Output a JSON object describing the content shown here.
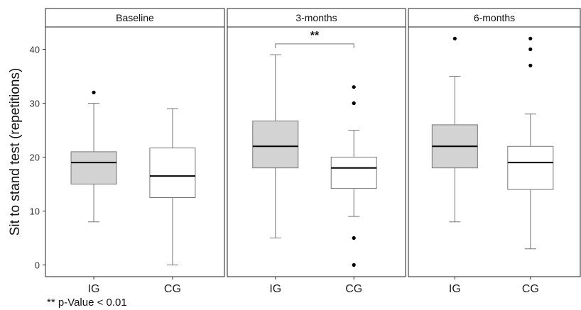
{
  "chart_data": {
    "type": "box",
    "ylabel": "Sit  to stand test (repetitions)",
    "xlabel": "",
    "ylim": [
      -2,
      44
    ],
    "yticks": [
      0,
      10,
      20,
      30,
      40
    ],
    "grid": false,
    "categories": [
      "IG",
      "CG"
    ],
    "fills": {
      "IG": "#d3d3d3",
      "CG": "#ffffff"
    },
    "panels": [
      {
        "title": "Baseline",
        "boxes": [
          {
            "group": "IG",
            "whisker_low": 8,
            "q1": 15,
            "median": 19,
            "q3": 21,
            "whisker_high": 30,
            "outliers": [
              32
            ]
          },
          {
            "group": "CG",
            "whisker_low": 0,
            "q1": 12.5,
            "median": 16.5,
            "q3": 21.7,
            "whisker_high": 29,
            "outliers": []
          }
        ]
      },
      {
        "title": "3-months",
        "boxes": [
          {
            "group": "IG",
            "whisker_low": 5,
            "q1": 18,
            "median": 22,
            "q3": 26.7,
            "whisker_high": 39,
            "outliers": []
          },
          {
            "group": "CG",
            "whisker_low": 9,
            "q1": 14.2,
            "median": 18,
            "q3": 20,
            "whisker_high": 25,
            "outliers": [
              0,
              5,
              30,
              33
            ]
          }
        ],
        "significance": {
          "label": "**",
          "between": [
            "IG",
            "CG"
          ],
          "y": 41
        }
      },
      {
        "title": "6-months",
        "boxes": [
          {
            "group": "IG",
            "whisker_low": 8,
            "q1": 18,
            "median": 22,
            "q3": 26,
            "whisker_high": 35,
            "outliers": [
              42
            ]
          },
          {
            "group": "CG",
            "whisker_low": 3,
            "q1": 14,
            "median": 19,
            "q3": 22,
            "whisker_high": 28,
            "outliers": [
              37,
              40,
              42
            ]
          }
        ]
      }
    ]
  },
  "footnote": "** p-Value < 0.01"
}
